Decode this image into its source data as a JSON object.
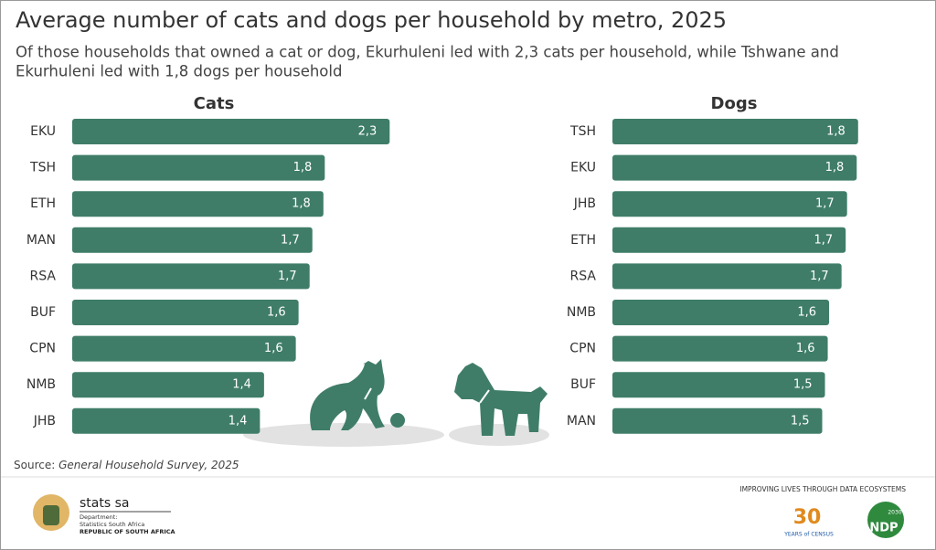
{
  "title": "Average number of cats and dogs per household by metro, 2025",
  "subtitle": [
    "Of those households that owned a cat or dog, Ekurhuleni led with 2,3 cats per household, while Tshwane and",
    "Ekurhuleni led with 1,8 dogs per household"
  ],
  "chart_data": [
    {
      "type": "bar",
      "title": "Cats",
      "color": "#3f7d69",
      "categories": [
        "EKU",
        "TSH",
        "ETH",
        "MAN",
        "RSA",
        "BUF",
        "CPN",
        "NMB",
        "JHB"
      ],
      "values": [
        2.3,
        1.83,
        1.82,
        1.74,
        1.72,
        1.64,
        1.62,
        1.39,
        1.36
      ],
      "value_labels": [
        "2,3",
        "1,8",
        "1,8",
        "1,7",
        "1,7",
        "1,6",
        "1,6",
        "1,4",
        "1,4"
      ]
    },
    {
      "type": "bar",
      "title": "Dogs",
      "color": "#3f7d69",
      "categories": [
        "TSH",
        "EKU",
        "JHB",
        "ETH",
        "RSA",
        "NMB",
        "CPN",
        "BUF",
        "MAN"
      ],
      "values": [
        1.78,
        1.77,
        1.7,
        1.69,
        1.66,
        1.57,
        1.56,
        1.54,
        1.52
      ],
      "value_labels": [
        "1,8",
        "1,8",
        "1,7",
        "1,7",
        "1,7",
        "1,6",
        "1,6",
        "1,5",
        "1,5"
      ]
    }
  ],
  "source": {
    "label": "Source:",
    "text": "General Household Survey, 2025"
  },
  "footer": {
    "brand": "stats sa",
    "department": "Department:",
    "department_name": "Statistics South Africa",
    "country": "REPUBLIC OF SOUTH AFRICA",
    "tagline": "IMPROVING LIVES THROUGH DATA ECOSYSTEMS",
    "census_number": "30",
    "census_text": "YEARS of CENSUS",
    "ndp": "NDP",
    "ndp_year": "2030"
  }
}
